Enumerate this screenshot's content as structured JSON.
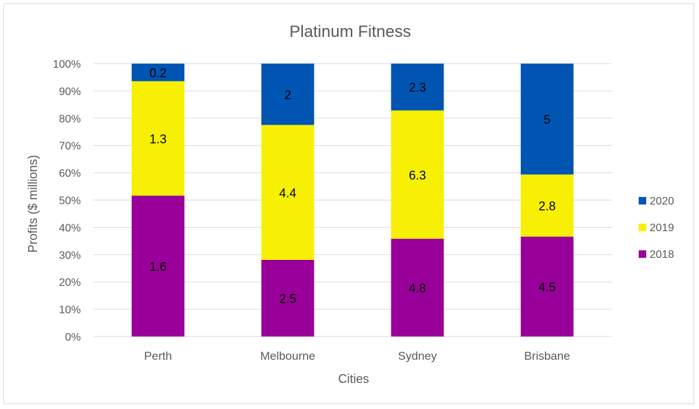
{
  "chart_data": {
    "type": "bar",
    "stacked": true,
    "normalized": true,
    "title": "Platinum Fitness",
    "xlabel": "Cities",
    "ylabel": "Profits ($ millions)",
    "categories": [
      "Perth",
      "Melbourne",
      "Sydney",
      "Brisbane"
    ],
    "ylim": [
      0,
      100
    ],
    "yticks": [
      "0%",
      "10%",
      "20%",
      "30%",
      "40%",
      "50%",
      "60%",
      "70%",
      "80%",
      "90%",
      "100%"
    ],
    "series": [
      {
        "name": "2018",
        "values": [
          1.6,
          2.5,
          4.8,
          4.5
        ],
        "color": "#990099"
      },
      {
        "name": "2019",
        "values": [
          1.3,
          4.4,
          6.3,
          2.8
        ],
        "color": "#f7f004"
      },
      {
        "name": "2020",
        "values": [
          0.2,
          2,
          2.3,
          5
        ],
        "color": "#0055b3"
      }
    ],
    "data_labels": [
      [
        "1.6",
        "2.5",
        "4.8",
        "4.5"
      ],
      [
        "1.3",
        "4.4",
        "6.3",
        "2.8"
      ],
      [
        "0.2",
        "2",
        "2.3",
        "5"
      ]
    ],
    "legend": [
      "2020",
      "2019",
      "2018"
    ],
    "legend_position": "right",
    "grid": true,
    "gridline_color": "#d9d9d9"
  }
}
